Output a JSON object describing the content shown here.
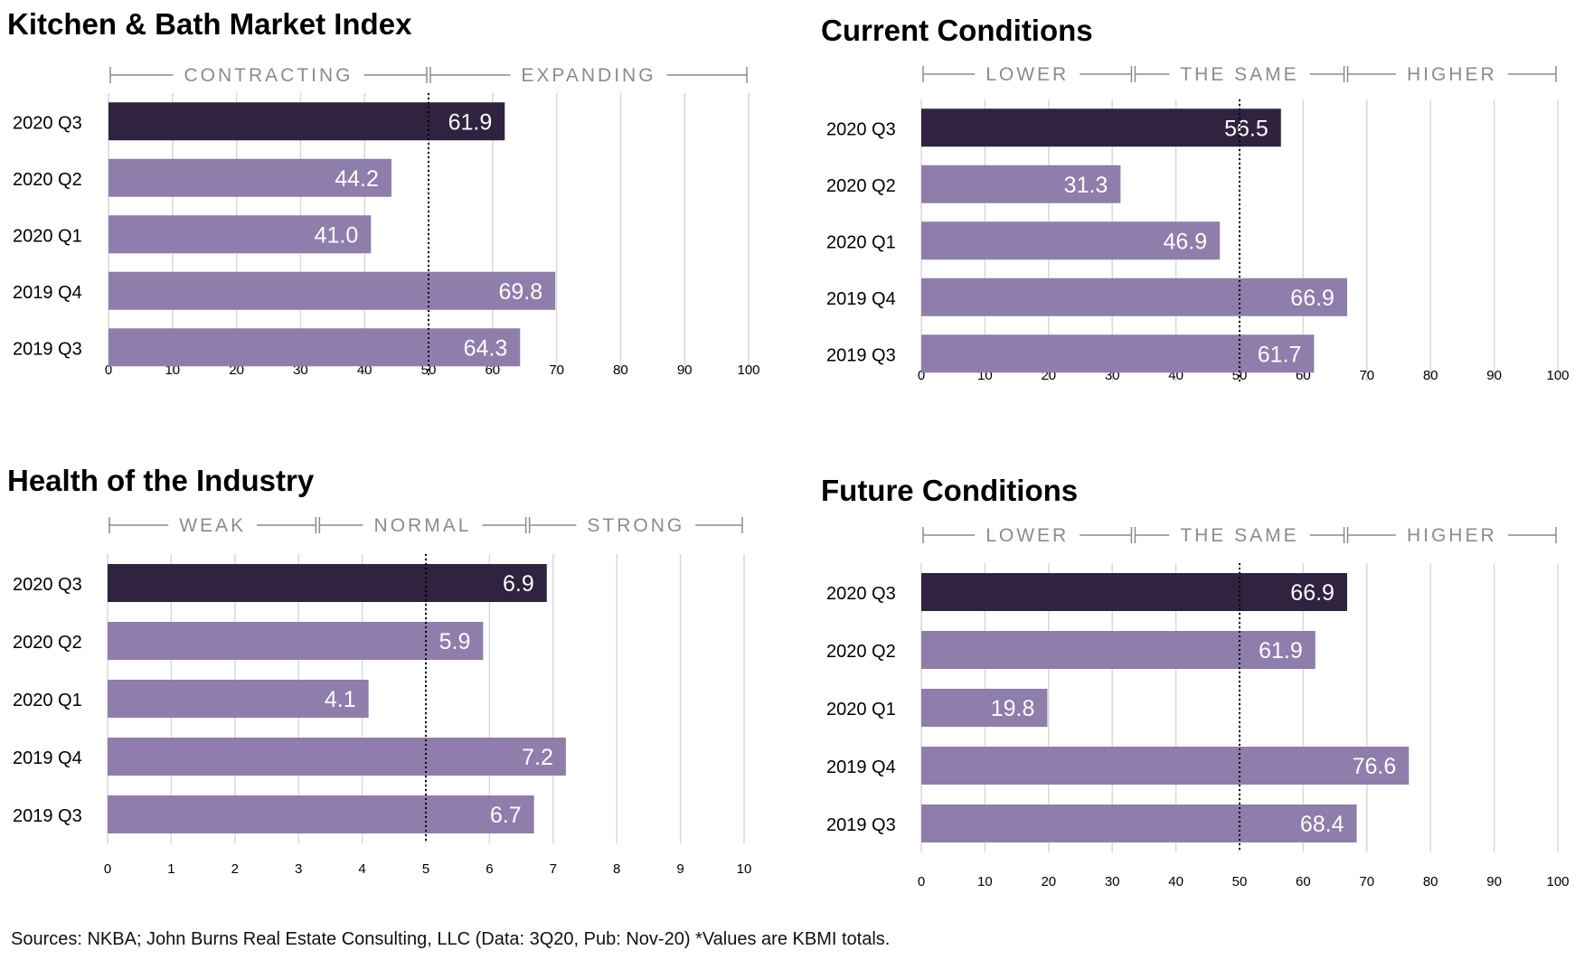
{
  "footer": "Sources: NKBA; John Burns Real Estate Consulting, LLC (Data: 3Q20, Pub: Nov-20) *Values are KBMI totals.",
  "colors": {
    "highlight": "#2f2340",
    "bar": "#8f7dab",
    "grid": "#d9d9d9",
    "band": "#8c8c8c"
  },
  "chart_data": [
    {
      "id": "kbmi",
      "type": "bar",
      "orientation": "horizontal",
      "title": "Kitchen & Bath Market Index",
      "categories": [
        "2020 Q3",
        "2020 Q2",
        "2020 Q1",
        "2019 Q4",
        "2019 Q3"
      ],
      "values": [
        61.9,
        44.2,
        41.0,
        69.8,
        64.3
      ],
      "value_labels": [
        "61.9",
        "44.2",
        "41.0",
        "69.8",
        "64.3"
      ],
      "highlight_index": 0,
      "xlim": [
        0,
        100
      ],
      "ticks": [
        0,
        10,
        20,
        30,
        40,
        50,
        60,
        70,
        80,
        90,
        100
      ],
      "tick_labels": [
        "0",
        "10",
        "20",
        "30",
        "40",
        "50",
        "60",
        "70",
        "80",
        "90",
        "100"
      ],
      "reference_line": 50,
      "bands": [
        {
          "label": "CONTRACTING",
          "from": 0,
          "to": 50
        },
        {
          "label": "EXPANDING",
          "from": 50,
          "to": 100
        }
      ]
    },
    {
      "id": "current",
      "type": "bar",
      "orientation": "horizontal",
      "title": "Current Conditions",
      "categories": [
        "2020 Q3",
        "2020 Q2",
        "2020 Q1",
        "2019 Q4",
        "2019 Q3"
      ],
      "values": [
        56.5,
        31.3,
        46.9,
        66.9,
        61.7
      ],
      "value_labels": [
        "56.5",
        "31.3",
        "46.9",
        "66.9",
        "61.7"
      ],
      "highlight_index": 0,
      "xlim": [
        0,
        100
      ],
      "ticks": [
        0,
        10,
        20,
        30,
        40,
        50,
        60,
        70,
        80,
        90,
        100
      ],
      "tick_labels": [
        "0",
        "10",
        "20",
        "30",
        "40",
        "50",
        "60",
        "70",
        "80",
        "90",
        "100"
      ],
      "reference_line": 50,
      "bands": [
        {
          "label": "LOWER",
          "from": 0,
          "to": 33.3
        },
        {
          "label": "THE SAME",
          "from": 33.3,
          "to": 66.7
        },
        {
          "label": "HIGHER",
          "from": 66.7,
          "to": 100
        }
      ]
    },
    {
      "id": "health",
      "type": "bar",
      "orientation": "horizontal",
      "title": "Health of the Industry",
      "categories": [
        "2020 Q3",
        "2020 Q2",
        "2020 Q1",
        "2019 Q4",
        "2019 Q3"
      ],
      "values": [
        6.9,
        5.9,
        4.1,
        7.2,
        6.7
      ],
      "value_labels": [
        "6.9",
        "5.9",
        "4.1",
        "7.2",
        "6.7"
      ],
      "highlight_index": 0,
      "xlim": [
        0,
        10
      ],
      "ticks": [
        0,
        1,
        2,
        3,
        4,
        5,
        6,
        7,
        8,
        9,
        10
      ],
      "tick_labels": [
        "0",
        "1",
        "2",
        "3",
        "4",
        "5",
        "6",
        "7",
        "8",
        "9",
        "10"
      ],
      "reference_line": 5,
      "bands": [
        {
          "label": "WEAK",
          "from": 0,
          "to": 3.3
        },
        {
          "label": "NORMAL",
          "from": 3.3,
          "to": 6.6
        },
        {
          "label": "STRONG",
          "from": 6.6,
          "to": 10
        }
      ]
    },
    {
      "id": "future",
      "type": "bar",
      "orientation": "horizontal",
      "title": "Future Conditions",
      "categories": [
        "2020 Q3",
        "2020 Q2",
        "2020 Q1",
        "2019 Q4",
        "2019 Q3"
      ],
      "values": [
        66.9,
        61.9,
        19.8,
        76.6,
        68.4
      ],
      "value_labels": [
        "66.9",
        "61.9",
        "19.8",
        "76.6",
        "68.4"
      ],
      "highlight_index": 0,
      "xlim": [
        0,
        100
      ],
      "ticks": [
        0,
        10,
        20,
        30,
        40,
        50,
        60,
        70,
        80,
        90,
        100
      ],
      "tick_labels": [
        "0",
        "10",
        "20",
        "30",
        "40",
        "50",
        "60",
        "70",
        "80",
        "90",
        "100"
      ],
      "reference_line": 50,
      "bands": [
        {
          "label": "LOWER",
          "from": 0,
          "to": 33.3
        },
        {
          "label": "THE SAME",
          "from": 33.3,
          "to": 66.7
        },
        {
          "label": "HIGHER",
          "from": 66.7,
          "to": 100
        }
      ]
    }
  ]
}
